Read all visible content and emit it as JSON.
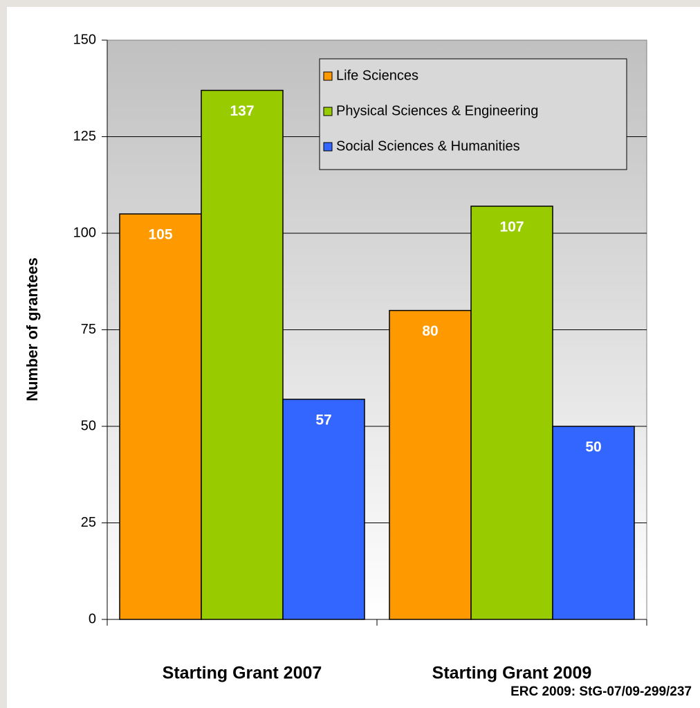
{
  "chart_data": {
    "type": "bar",
    "y_label": "Number of grantees",
    "footnote": "ERC 2009: StG-07/09-299/237",
    "categories": [
      "Starting Grant 2007",
      "Starting Grant 2009"
    ],
    "series": [
      {
        "name": "Life Sciences",
        "color": "#ff9900",
        "values": [
          105,
          80
        ]
      },
      {
        "name": "Physical Sciences & Engineering",
        "color": "#99cc00",
        "values": [
          137,
          107
        ]
      },
      {
        "name": "Social Sciences & Humanities",
        "color": "#3366ff",
        "values": [
          57,
          50
        ]
      }
    ],
    "ylim": [
      0,
      150
    ],
    "yticks": [
      0,
      25,
      50,
      75,
      100,
      125,
      150
    ],
    "grid": true
  }
}
